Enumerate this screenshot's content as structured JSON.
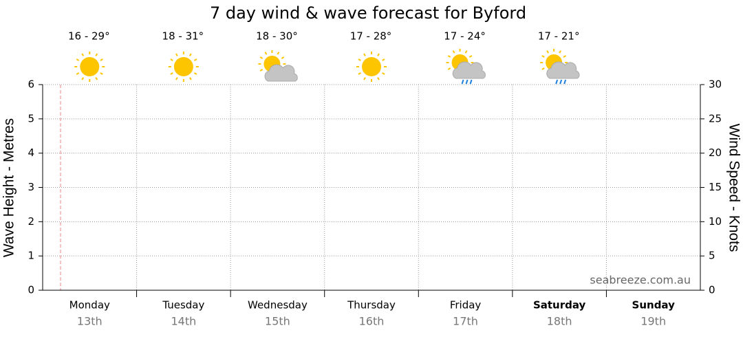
{
  "chart_data": {
    "type": "line",
    "title": "7 day wind & wave forecast for Byford",
    "y_label": "Wave Height - Metres",
    "y2_label": "Wind Speed - Knots",
    "categories": [
      "Monday",
      "Tuesday",
      "Wednesday",
      "Thursday",
      "Friday",
      "Saturday",
      "Sunday"
    ],
    "dates": [
      "13th",
      "14th",
      "15th",
      "16th",
      "17th",
      "18th",
      "19th"
    ],
    "temperatures": [
      "16 - 29°",
      "18 - 31°",
      "18 - 30°",
      "17 - 28°",
      "17 - 24°",
      "17 - 21°",
      null
    ],
    "icons": [
      "sun",
      "sun",
      "sun-cloud",
      "sun",
      "sun-cloud-rain",
      "sun-cloud-rain",
      null
    ],
    "ylim": [
      0,
      6
    ],
    "yticks": [
      0,
      1,
      2,
      3,
      4,
      5,
      6
    ],
    "y2lim": [
      0,
      30
    ],
    "y2ticks": [
      0,
      5,
      10,
      15,
      20,
      25,
      30
    ],
    "grid": true,
    "annotation": "seabreeze.com.au"
  }
}
